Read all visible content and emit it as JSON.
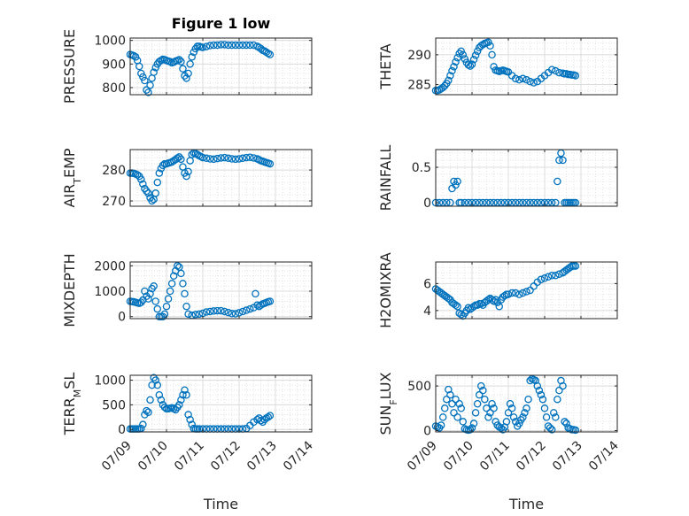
{
  "chart_data": [
    {
      "type": "scatter",
      "title": "Figure 1 low",
      "ylabel": "PRESSURE",
      "ylabel_sub": "",
      "ylabel_tail": "",
      "ylim": [
        770,
        1010
      ],
      "yticks": [
        800,
        900,
        1000
      ],
      "x": [
        9.0,
        9.05,
        9.1,
        9.15,
        9.2,
        9.25,
        9.3,
        9.35,
        9.4,
        9.45,
        9.5,
        9.55,
        9.6,
        9.65,
        9.7,
        9.75,
        9.8,
        9.85,
        9.9,
        9.95,
        10.0,
        10.05,
        10.1,
        10.15,
        10.2,
        10.25,
        10.3,
        10.35,
        10.4,
        10.45,
        10.5,
        10.55,
        10.6,
        10.65,
        10.7,
        10.75,
        10.8,
        10.85,
        10.9,
        10.95,
        11.0,
        11.1,
        11.2,
        11.3,
        11.4,
        11.5,
        11.6,
        11.7,
        11.8,
        11.9,
        12.0,
        12.1,
        12.2,
        12.3,
        12.4,
        12.5,
        12.55,
        12.6,
        12.65,
        12.7,
        12.75,
        12.8,
        12.85
      ],
      "y": [
        940,
        938,
        935,
        930,
        915,
        890,
        860,
        845,
        830,
        790,
        780,
        810,
        840,
        865,
        885,
        900,
        910,
        915,
        920,
        918,
        915,
        912,
        910,
        905,
        908,
        912,
        915,
        918,
        910,
        880,
        850,
        840,
        860,
        900,
        930,
        950,
        965,
        975,
        975,
        972,
        970,
        974,
        978,
        980,
        980,
        982,
        982,
        980,
        980,
        980,
        980,
        980,
        980,
        980,
        980,
        975,
        970,
        965,
        958,
        955,
        950,
        945,
        940
      ],
      "color": "#0072bd"
    },
    {
      "type": "scatter",
      "title": "",
      "ylabel": "THETA",
      "ylabel_sub": "",
      "ylabel_tail": "",
      "ylim": [
        283.3,
        292.8
      ],
      "yticks": [
        285,
        290
      ],
      "x": [
        9.0,
        9.05,
        9.1,
        9.15,
        9.2,
        9.25,
        9.3,
        9.35,
        9.4,
        9.45,
        9.5,
        9.55,
        9.6,
        9.65,
        9.7,
        9.75,
        9.8,
        9.85,
        9.9,
        9.95,
        10.0,
        10.05,
        10.1,
        10.15,
        10.2,
        10.25,
        10.3,
        10.35,
        10.4,
        10.45,
        10.5,
        10.55,
        10.6,
        10.65,
        10.7,
        10.75,
        10.8,
        10.85,
        10.9,
        10.95,
        11.0,
        11.1,
        11.2,
        11.3,
        11.4,
        11.5,
        11.6,
        11.7,
        11.8,
        11.9,
        12.0,
        12.1,
        12.2,
        12.3,
        12.4,
        12.5,
        12.55,
        12.6,
        12.65,
        12.7,
        12.75,
        12.8,
        12.85
      ],
      "y": [
        284.0,
        284.0,
        284.1,
        284.3,
        284.5,
        284.8,
        285.2,
        285.7,
        286.5,
        287.3,
        288.0,
        288.8,
        289.5,
        290.2,
        290.6,
        290.0,
        289.3,
        288.7,
        288.3,
        288.1,
        288.4,
        289.2,
        289.9,
        290.6,
        291.2,
        291.5,
        291.7,
        291.9,
        292.0,
        292.1,
        291.5,
        290.0,
        288.0,
        287.4,
        287.3,
        287.2,
        287.3,
        287.4,
        287.3,
        287.2,
        287.1,
        286.5,
        286.0,
        285.8,
        286.0,
        285.8,
        285.5,
        285.3,
        285.5,
        286.0,
        286.5,
        287.0,
        287.5,
        287.3,
        287.0,
        286.9,
        286.8,
        286.8,
        286.7,
        286.7,
        286.6,
        286.6,
        286.5
      ],
      "color": "#0072bd"
    },
    {
      "type": "scatter",
      "title": "",
      "ylabel": "AIR",
      "ylabel_sub": "T",
      "ylabel_tail": "EMP",
      "ylim": [
        268.3,
        286.6
      ],
      "yticks": [
        270,
        280
      ],
      "x": [
        9.0,
        9.05,
        9.1,
        9.15,
        9.2,
        9.25,
        9.3,
        9.35,
        9.4,
        9.45,
        9.5,
        9.55,
        9.6,
        9.65,
        9.7,
        9.75,
        9.8,
        9.85,
        9.9,
        9.95,
        10.0,
        10.05,
        10.1,
        10.15,
        10.2,
        10.25,
        10.3,
        10.35,
        10.4,
        10.45,
        10.5,
        10.55,
        10.6,
        10.65,
        10.7,
        10.75,
        10.8,
        10.85,
        10.9,
        10.95,
        11.0,
        11.1,
        11.2,
        11.3,
        11.4,
        11.5,
        11.6,
        11.7,
        11.8,
        11.9,
        12.0,
        12.1,
        12.2,
        12.3,
        12.4,
        12.5,
        12.55,
        12.6,
        12.65,
        12.7,
        12.75,
        12.8,
        12.85
      ],
      "y": [
        279.0,
        279.0,
        278.9,
        278.7,
        278.4,
        278.0,
        277.0,
        275.5,
        274.0,
        273.2,
        272.5,
        271.0,
        270.0,
        270.5,
        272.5,
        276.0,
        279.0,
        280.5,
        281.5,
        282.0,
        282.0,
        282.2,
        282.4,
        282.6,
        283.0,
        283.4,
        283.8,
        284.2,
        283.5,
        281.0,
        279.0,
        278.0,
        279.5,
        283.0,
        285.0,
        285.5,
        285.3,
        285.0,
        284.6,
        284.3,
        284.0,
        283.8,
        283.6,
        283.5,
        283.7,
        283.9,
        284.0,
        283.8,
        283.6,
        283.5,
        283.6,
        283.8,
        284.0,
        284.1,
        283.9,
        283.6,
        283.3,
        283.0,
        282.8,
        282.6,
        282.4,
        282.2,
        282.0
      ],
      "color": "#0072bd"
    },
    {
      "type": "scatter",
      "title": "",
      "ylabel": "RAINFALL",
      "ylabel_sub": "",
      "ylabel_tail": "",
      "ylim": [
        -0.05,
        0.75
      ],
      "yticks": [
        0,
        0.5
      ],
      "x": [
        9.0,
        9.1,
        9.2,
        9.3,
        9.4,
        9.45,
        9.5,
        9.55,
        9.6,
        9.65,
        9.7,
        9.8,
        9.9,
        10.0,
        10.1,
        10.2,
        10.3,
        10.4,
        10.5,
        10.6,
        10.7,
        10.8,
        10.9,
        11.0,
        11.1,
        11.2,
        11.3,
        11.4,
        11.5,
        11.6,
        11.7,
        11.8,
        11.9,
        12.0,
        12.1,
        12.2,
        12.3,
        12.35,
        12.4,
        12.45,
        12.5,
        12.55,
        12.6,
        12.65,
        12.7,
        12.75,
        12.8,
        12.85
      ],
      "y": [
        0,
        0,
        0,
        0,
        0,
        0.2,
        0.3,
        0.25,
        0.3,
        0,
        0,
        0,
        0,
        0,
        0,
        0,
        0,
        0,
        0,
        0,
        0,
        0,
        0,
        0,
        0,
        0,
        0,
        0,
        0,
        0,
        0,
        0,
        0,
        0,
        0,
        0,
        0,
        0.3,
        0.6,
        0.7,
        0.6,
        0,
        0,
        0,
        0,
        0,
        0,
        0
      ],
      "color": "#0072bd"
    },
    {
      "type": "scatter",
      "title": "",
      "ylabel": "MIXDEPTH",
      "ylabel_sub": "",
      "ylabel_tail": "",
      "ylim": [
        -80,
        2150
      ],
      "yticks": [
        0,
        1000,
        2000
      ],
      "x": [
        9.0,
        9.05,
        9.1,
        9.15,
        9.2,
        9.25,
        9.3,
        9.35,
        9.4,
        9.45,
        9.5,
        9.55,
        9.6,
        9.65,
        9.7,
        9.75,
        9.8,
        9.85,
        9.9,
        9.95,
        10.0,
        10.05,
        10.1,
        10.15,
        10.2,
        10.25,
        10.3,
        10.35,
        10.4,
        10.45,
        10.5,
        10.55,
        10.6,
        10.7,
        10.8,
        10.9,
        11.0,
        11.1,
        11.2,
        11.3,
        11.4,
        11.5,
        11.6,
        11.7,
        11.8,
        11.9,
        12.0,
        12.1,
        12.2,
        12.3,
        12.4,
        12.45,
        12.5,
        12.55,
        12.6,
        12.65,
        12.7,
        12.75,
        12.8,
        12.85
      ],
      "y": [
        600,
        590,
        580,
        560,
        540,
        520,
        560,
        650,
        1000,
        800,
        700,
        900,
        1100,
        1200,
        600,
        300,
        0,
        0,
        0,
        100,
        400,
        700,
        1000,
        1300,
        1600,
        1800,
        2000,
        1950,
        1700,
        1300,
        900,
        400,
        100,
        50,
        80,
        100,
        130,
        180,
        200,
        220,
        230,
        230,
        200,
        160,
        120,
        110,
        150,
        200,
        250,
        300,
        350,
        900,
        450,
        400,
        450,
        500,
        520,
        550,
        580,
        600
      ],
      "color": "#0072bd"
    },
    {
      "type": "scatter",
      "title": "",
      "ylabel": "H2OMIXRA",
      "ylabel_sub": "",
      "ylabel_tail": "",
      "ylim": [
        3.4,
        7.6
      ],
      "yticks": [
        4,
        6
      ],
      "x": [
        9.0,
        9.05,
        9.1,
        9.15,
        9.2,
        9.25,
        9.3,
        9.35,
        9.4,
        9.45,
        9.5,
        9.55,
        9.6,
        9.65,
        9.7,
        9.75,
        9.8,
        9.85,
        9.9,
        9.95,
        10.0,
        10.05,
        10.1,
        10.15,
        10.2,
        10.25,
        10.3,
        10.35,
        10.4,
        10.45,
        10.5,
        10.55,
        10.6,
        10.65,
        10.7,
        10.75,
        10.8,
        10.85,
        10.9,
        10.95,
        11.0,
        11.1,
        11.2,
        11.3,
        11.4,
        11.5,
        11.6,
        11.7,
        11.8,
        11.9,
        12.0,
        12.1,
        12.2,
        12.3,
        12.4,
        12.5,
        12.55,
        12.6,
        12.65,
        12.7,
        12.75,
        12.8,
        12.85
      ],
      "y": [
        5.6,
        5.5,
        5.4,
        5.3,
        5.2,
        5.1,
        5.0,
        4.9,
        4.8,
        4.6,
        4.5,
        4.4,
        4.3,
        3.8,
        3.7,
        3.6,
        3.8,
        4.0,
        4.2,
        4.1,
        4.2,
        4.3,
        4.4,
        4.4,
        4.5,
        4.5,
        4.4,
        4.6,
        4.7,
        4.8,
        4.9,
        4.8,
        4.7,
        4.8,
        4.6,
        4.3,
        4.8,
        5.0,
        5.1,
        5.2,
        5.2,
        5.3,
        5.3,
        5.2,
        5.3,
        5.4,
        5.5,
        5.8,
        6.1,
        6.3,
        6.4,
        6.5,
        6.6,
        6.6,
        6.7,
        6.8,
        6.9,
        7.0,
        7.1,
        7.2,
        7.3,
        7.3,
        7.3
      ],
      "color": "#0072bd"
    },
    {
      "type": "scatter",
      "title": "",
      "ylabel": "TERR",
      "ylabel_sub": "M",
      "ylabel_tail": "SL",
      "ylim": [
        -50,
        1100
      ],
      "yticks": [
        0,
        500,
        1000
      ],
      "x": [
        9.0,
        9.05,
        9.1,
        9.15,
        9.2,
        9.25,
        9.3,
        9.35,
        9.4,
        9.45,
        9.5,
        9.55,
        9.6,
        9.65,
        9.7,
        9.75,
        9.8,
        9.85,
        9.9,
        9.95,
        10.0,
        10.05,
        10.1,
        10.15,
        10.2,
        10.25,
        10.3,
        10.35,
        10.4,
        10.45,
        10.5,
        10.55,
        10.6,
        10.65,
        10.7,
        10.75,
        10.8,
        10.85,
        10.9,
        11.0,
        11.1,
        11.2,
        11.3,
        11.4,
        11.5,
        11.6,
        11.7,
        11.8,
        11.9,
        12.0,
        12.1,
        12.2,
        12.3,
        12.4,
        12.5,
        12.55,
        12.6,
        12.65,
        12.7,
        12.75,
        12.8,
        12.85
      ],
      "y": [
        10,
        10,
        10,
        10,
        10,
        10,
        20,
        100,
        300,
        380,
        350,
        600,
        900,
        1050,
        1000,
        900,
        700,
        600,
        500,
        450,
        420,
        420,
        430,
        440,
        420,
        400,
        450,
        500,
        600,
        700,
        800,
        700,
        300,
        200,
        100,
        20,
        10,
        10,
        10,
        10,
        10,
        10,
        10,
        10,
        10,
        10,
        10,
        10,
        10,
        10,
        10,
        20,
        80,
        150,
        200,
        230,
        180,
        150,
        200,
        230,
        250,
        280
      ],
      "color": "#0072bd"
    },
    {
      "type": "scatter",
      "title": "",
      "ylabel": "SUN",
      "ylabel_sub": "F",
      "ylabel_tail": "LUX",
      "ylim": [
        -15,
        620
      ],
      "yticks": [
        0,
        500
      ],
      "x": [
        9.0,
        9.05,
        9.1,
        9.15,
        9.2,
        9.25,
        9.3,
        9.35,
        9.4,
        9.45,
        9.5,
        9.55,
        9.6,
        9.65,
        9.7,
        9.75,
        9.8,
        9.85,
        9.9,
        9.95,
        10.0,
        10.05,
        10.1,
        10.15,
        10.2,
        10.25,
        10.3,
        10.35,
        10.4,
        10.45,
        10.5,
        10.55,
        10.6,
        10.65,
        10.7,
        10.75,
        10.8,
        10.85,
        10.9,
        10.95,
        11.0,
        11.05,
        11.1,
        11.15,
        11.2,
        11.25,
        11.3,
        11.35,
        11.4,
        11.45,
        11.5,
        11.55,
        11.6,
        11.65,
        11.7,
        11.75,
        11.8,
        11.85,
        11.9,
        11.95,
        12.0,
        12.05,
        12.1,
        12.15,
        12.2,
        12.25,
        12.3,
        12.35,
        12.4,
        12.45,
        12.5,
        12.55,
        12.6,
        12.65,
        12.7,
        12.75,
        12.8,
        12.85
      ],
      "y": [
        50,
        40,
        30,
        60,
        150,
        250,
        350,
        460,
        400,
        300,
        200,
        350,
        150,
        300,
        250,
        100,
        20,
        10,
        5,
        10,
        30,
        80,
        200,
        300,
        400,
        500,
        450,
        350,
        250,
        150,
        200,
        300,
        250,
        100,
        60,
        40,
        30,
        10,
        40,
        100,
        200,
        300,
        250,
        150,
        100,
        50,
        80,
        120,
        150,
        200,
        250,
        350,
        560,
        580,
        570,
        560,
        500,
        450,
        400,
        350,
        250,
        150,
        50,
        30,
        10,
        200,
        150,
        350,
        450,
        560,
        500,
        100,
        80,
        30,
        20,
        10,
        10,
        5
      ],
      "color": "#0072bd"
    }
  ],
  "x_axis": {
    "range": [
      9,
      14
    ],
    "tick_values": [
      9,
      10,
      11,
      12,
      13,
      14
    ],
    "tick_labels": [
      "07/09",
      "07/10",
      "07/11",
      "07/12",
      "07/13",
      "07/14"
    ],
    "xlabel": "Time",
    "grid": true,
    "minor_grid": true
  }
}
